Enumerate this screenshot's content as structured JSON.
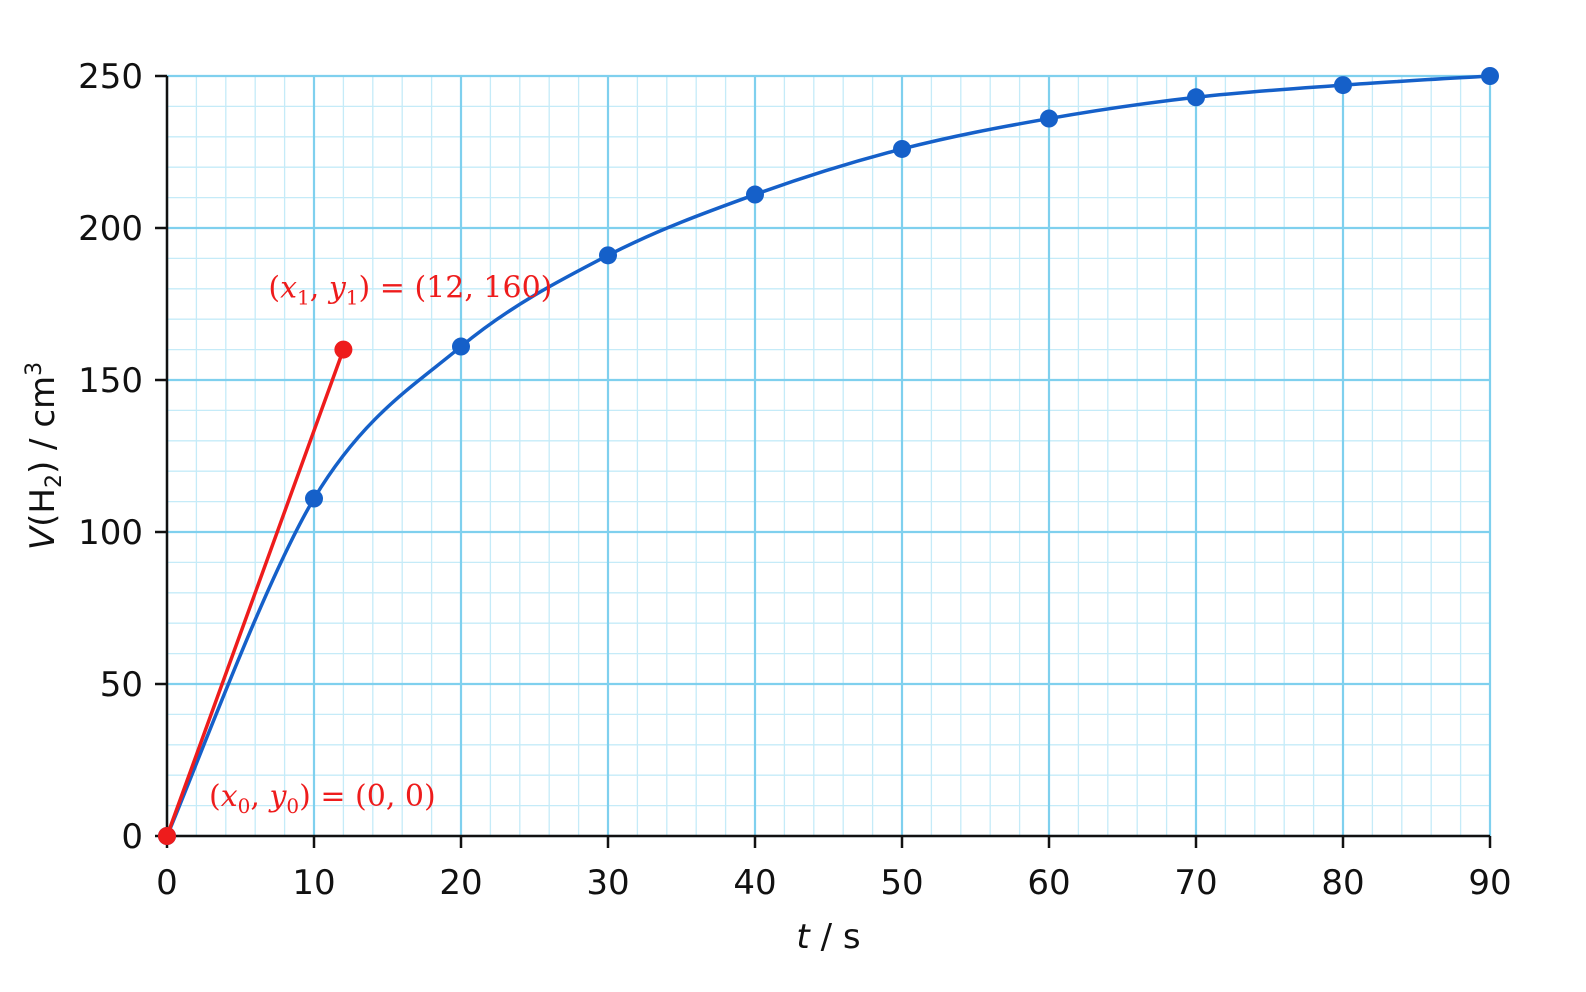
{
  "chart_data": {
    "type": "line",
    "xlabel": {
      "var": "t",
      "unit": "s"
    },
    "ylabel": {
      "var": "V",
      "species": "H",
      "species_sub": "2",
      "unit": "cm",
      "unit_sup": "3"
    },
    "xlim": [
      0,
      90
    ],
    "ylim": [
      0,
      250
    ],
    "x_ticks": [
      0,
      10,
      20,
      30,
      40,
      50,
      60,
      70,
      80,
      90
    ],
    "y_ticks": [
      0,
      50,
      100,
      150,
      200,
      250
    ],
    "x_tick_labels": [
      "0",
      "10",
      "20",
      "30",
      "40",
      "50",
      "60",
      "70",
      "80",
      "90"
    ],
    "y_tick_labels": [
      "0",
      "50",
      "100",
      "150",
      "200",
      "250"
    ],
    "grid": {
      "major": true,
      "minor": true,
      "minor_per_major_x": 5,
      "minor_per_major_y": 5
    },
    "series": [
      {
        "x": [
          0,
          10,
          20,
          30,
          40,
          50,
          60,
          70,
          80,
          90
        ],
        "y": [
          0,
          111,
          161,
          191,
          211,
          226,
          236,
          243,
          247,
          250
        ],
        "color": "#1560c9",
        "markers": true,
        "smooth": true
      },
      {
        "x": [
          0,
          12
        ],
        "y": [
          0,
          160
        ],
        "color": "#ee1c1c",
        "markers": true,
        "smooth": false
      }
    ],
    "annotations": [
      {
        "x_var": "x",
        "y_var": "y",
        "sub": "1",
        "equals": " = ",
        "value": "(12, 160)",
        "color": "#ee1c1c",
        "at_x": 12,
        "at_y": 160
      },
      {
        "x_var": "x",
        "y_var": "y",
        "sub": "0",
        "equals": " = ",
        "value": "(0, 0)",
        "color": "#ee1c1c",
        "at_x": 0,
        "at_y": 0
      }
    ],
    "colors": {
      "grid_major": "#7fd0ee",
      "grid_minor": "#c5ebf8",
      "axis": "#111111"
    }
  }
}
